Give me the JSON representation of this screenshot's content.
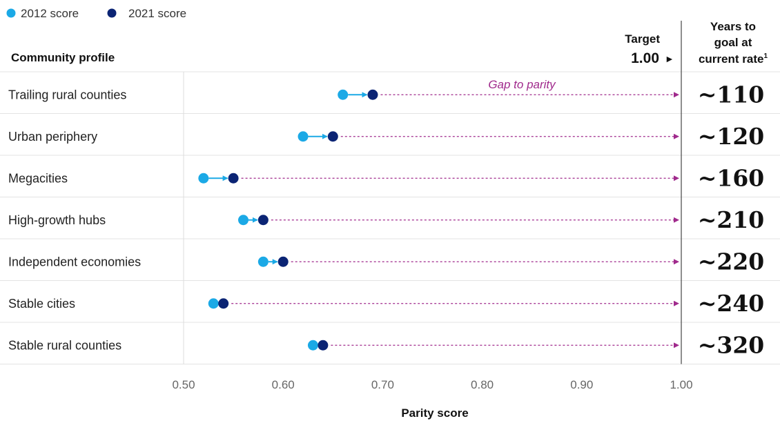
{
  "legend": {
    "items": [
      {
        "label": "2012 score",
        "color": "#1ba9e6"
      },
      {
        "label": "2021 score",
        "color": "#0b2474"
      }
    ]
  },
  "header": {
    "row_label": "Community profile",
    "target_label": "Target",
    "target_value_text": "1.00",
    "target_arrow": "►",
    "years_label_lines": [
      "Years to",
      "goal at",
      "current rate"
    ],
    "years_label_footnote": "1"
  },
  "annotation": {
    "gap_label": "Gap to parity",
    "gap_color": "#a02a8c"
  },
  "chart_data": {
    "type": "dumbbell",
    "xlabel": "Parity score",
    "xlim": [
      0.5,
      1.0
    ],
    "x_ticks": [
      "0.50",
      "0.60",
      "0.70",
      "0.80",
      "0.90",
      "1.00"
    ],
    "x_tick_values": [
      0.5,
      0.6,
      0.7,
      0.8,
      0.9,
      1.0
    ],
    "target": 1.0,
    "categories": [
      "Trailing rural counties",
      "Urban periphery",
      "Megacities",
      "High-growth hubs",
      "Independent economies",
      "Stable cities",
      "Stable rural counties"
    ],
    "series": [
      {
        "name": "2012 score",
        "color": "#1ba9e6",
        "values": [
          0.66,
          0.62,
          0.52,
          0.56,
          0.58,
          0.53,
          0.63
        ]
      },
      {
        "name": "2021 score",
        "color": "#0b2474",
        "values": [
          0.69,
          0.65,
          0.55,
          0.58,
          0.6,
          0.54,
          0.64
        ]
      }
    ],
    "years_to_goal": [
      "~110",
      "~120",
      "~160",
      "~210",
      "~220",
      "~240",
      "~320"
    ]
  }
}
